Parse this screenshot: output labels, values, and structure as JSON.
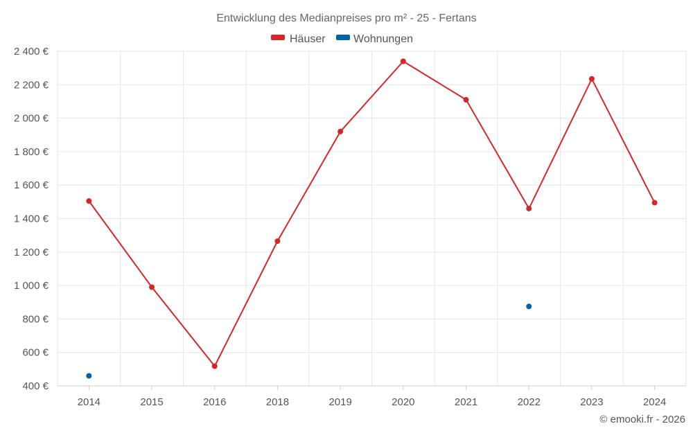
{
  "chart_data": {
    "type": "line",
    "title": "Entwicklung des Medianpreises pro m² - 25 - Fertans",
    "categories": [
      "2014",
      "2015",
      "2016",
      "2018",
      "2019",
      "2020",
      "2021",
      "2022",
      "2023",
      "2024"
    ],
    "series": [
      {
        "name": "Häuser",
        "color": "#d62728",
        "values": [
          1505,
          990,
          518,
          1265,
          1920,
          2340,
          2110,
          1460,
          2235,
          1495
        ]
      },
      {
        "name": "Wohnungen",
        "color": "#0063a3",
        "values": [
          460,
          null,
          null,
          null,
          null,
          null,
          null,
          875,
          null,
          null
        ]
      }
    ],
    "ylim": [
      400,
      2400
    ],
    "yticks": [
      400,
      600,
      800,
      1000,
      1200,
      1400,
      1600,
      1800,
      2000,
      2200,
      2400
    ],
    "ytick_labels": [
      "400 €",
      "600 €",
      "800 €",
      "1 000 €",
      "1 200 €",
      "1 400 €",
      "1 600 €",
      "1 800 €",
      "2 000 €",
      "2 200 €",
      "2 400 €"
    ],
    "xlabel": "",
    "ylabel": "",
    "grid": true,
    "legend_position": "top-center"
  },
  "credit": "© emooki.fr - 2026"
}
